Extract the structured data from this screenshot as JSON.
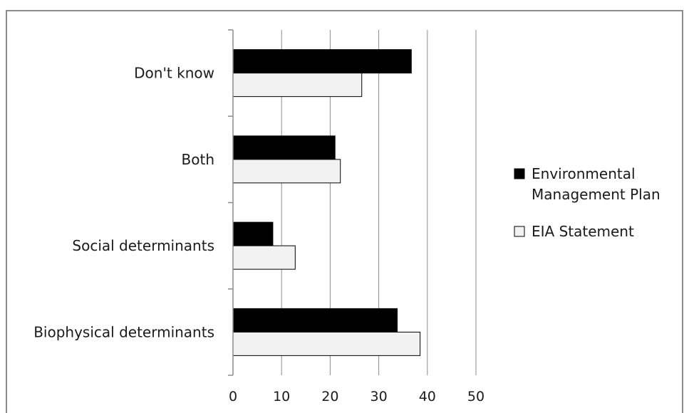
{
  "chart_data": {
    "type": "bar",
    "orientation": "horizontal",
    "title": "",
    "xlabel": "",
    "ylabel": "",
    "categories": [
      "Biophysical determinants",
      "Social determinants",
      "Both",
      "Don't know"
    ],
    "series": [
      {
        "name": "Environmental Management Plan",
        "legend_lines": [
          "Environmental",
          "Management Plan"
        ],
        "values": [
          33.8,
          8.2,
          21.0,
          36.7
        ],
        "color": "#000000"
      },
      {
        "name": "EIA Statement",
        "legend_lines": [
          "EIA Statement"
        ],
        "values": [
          38.5,
          12.8,
          22.1,
          26.5
        ],
        "color": "#f2f2f2"
      }
    ],
    "xlim": [
      0,
      50
    ],
    "ticks": [
      0,
      10,
      20,
      30,
      40,
      50
    ],
    "grid": true,
    "legend_position": "right"
  }
}
